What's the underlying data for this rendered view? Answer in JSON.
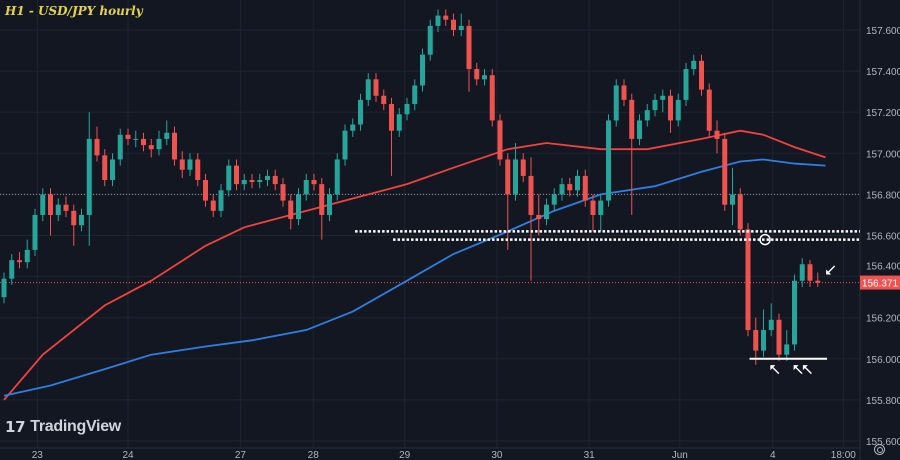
{
  "chart_data": {
    "type": "candlestick",
    "title": "H1 - USD/JPY hourly",
    "symbol": "USD/JPY",
    "timeframe": "hourly",
    "ylim": [
      155.566,
      157.746
    ],
    "xlim": [
      -0.5,
      110.5
    ],
    "grid": true,
    "y_ticks": [
      "157.600",
      "157.400",
      "157.200",
      "157.000",
      "156.800",
      "156.600",
      "156.400",
      "156.200",
      "156.000",
      "155.800",
      "155.600"
    ],
    "x_ticks": [
      {
        "label": "23",
        "index": 4.3
      },
      {
        "label": "24",
        "index": 16
      },
      {
        "label": "27",
        "index": 30.5
      },
      {
        "label": "28",
        "index": 39.9
      },
      {
        "label": "29",
        "index": 51.7
      },
      {
        "label": "30",
        "index": 63.6
      },
      {
        "label": "31",
        "index": 75.5
      },
      {
        "label": "Jun",
        "index": 87.2
      },
      {
        "label": "4",
        "index": 99.2
      },
      {
        "label": "18:00",
        "index": 108.3
      }
    ],
    "last_price": "156.371",
    "colors": {
      "up": "#26a69a",
      "down": "#ef5350",
      "ma_fast": "#f0423f",
      "ma_slow": "#2f7fe0",
      "background": "#131722",
      "grid": "#1f2431",
      "axis_text": "#b2b5be",
      "title": "#e3d44a",
      "annotation": "#ffffff"
    },
    "candles": [
      [
        156.3,
        156.42,
        156.27,
        156.39
      ],
      [
        156.39,
        156.51,
        156.36,
        156.48
      ],
      [
        156.48,
        156.52,
        156.44,
        156.47
      ],
      [
        156.47,
        156.58,
        156.44,
        156.53
      ],
      [
        156.53,
        156.73,
        156.5,
        156.7
      ],
      [
        156.7,
        156.83,
        156.67,
        156.8
      ],
      [
        156.8,
        156.83,
        156.6,
        156.7
      ],
      [
        156.7,
        156.78,
        156.67,
        156.75
      ],
      [
        156.75,
        156.79,
        156.69,
        156.72
      ],
      [
        156.72,
        156.75,
        156.55,
        156.65
      ],
      [
        156.65,
        156.73,
        156.62,
        156.7
      ],
      [
        156.7,
        157.2,
        156.55,
        157.07
      ],
      [
        157.07,
        157.13,
        156.96,
        156.99
      ],
      [
        156.99,
        157.02,
        156.84,
        156.87
      ],
      [
        156.87,
        157.0,
        156.84,
        156.97
      ],
      [
        156.97,
        157.12,
        156.94,
        157.09
      ],
      [
        157.09,
        157.12,
        157.04,
        157.07
      ],
      [
        157.07,
        157.11,
        157.03,
        157.07
      ],
      [
        157.07,
        157.1,
        157.01,
        157.04
      ],
      [
        157.04,
        157.07,
        156.98,
        157.02
      ],
      [
        157.02,
        157.11,
        156.99,
        157.07
      ],
      [
        157.07,
        157.16,
        157.04,
        157.1
      ],
      [
        157.1,
        157.13,
        156.94,
        156.97
      ],
      [
        156.97,
        157.01,
        156.88,
        156.92
      ],
      [
        156.92,
        157.0,
        156.89,
        156.97
      ],
      [
        156.97,
        157.0,
        156.84,
        156.87
      ],
      [
        156.87,
        156.9,
        156.74,
        156.77
      ],
      [
        156.77,
        156.8,
        156.69,
        156.72
      ],
      [
        156.72,
        156.85,
        156.69,
        156.82
      ],
      [
        156.82,
        156.97,
        156.79,
        156.94
      ],
      [
        156.94,
        156.97,
        156.82,
        156.85
      ],
      [
        156.85,
        156.9,
        156.82,
        156.87
      ],
      [
        156.87,
        156.9,
        156.83,
        156.86
      ],
      [
        156.86,
        156.9,
        156.83,
        156.87
      ],
      [
        156.87,
        156.92,
        156.84,
        156.89
      ],
      [
        156.89,
        156.92,
        156.82,
        156.85
      ],
      [
        156.85,
        156.88,
        156.74,
        156.77
      ],
      [
        156.77,
        156.8,
        156.63,
        156.68
      ],
      [
        156.68,
        156.83,
        156.65,
        156.8
      ],
      [
        156.8,
        156.9,
        156.77,
        156.87
      ],
      [
        156.87,
        156.9,
        156.82,
        156.85
      ],
      [
        156.85,
        156.88,
        156.58,
        156.7
      ],
      [
        156.7,
        156.83,
        156.67,
        156.8
      ],
      [
        156.8,
        157.0,
        156.77,
        156.97
      ],
      [
        156.97,
        157.14,
        156.94,
        157.11
      ],
      [
        157.11,
        157.17,
        157.08,
        157.14
      ],
      [
        157.14,
        157.29,
        157.11,
        157.26
      ],
      [
        157.26,
        157.39,
        157.23,
        157.36
      ],
      [
        157.36,
        157.39,
        157.25,
        157.28
      ],
      [
        157.28,
        157.31,
        157.21,
        157.24
      ],
      [
        157.24,
        157.27,
        156.89,
        157.11
      ],
      [
        157.11,
        157.22,
        157.08,
        157.19
      ],
      [
        157.19,
        157.27,
        157.16,
        157.24
      ],
      [
        157.24,
        157.36,
        157.21,
        157.33
      ],
      [
        157.33,
        157.51,
        157.3,
        157.48
      ],
      [
        157.48,
        157.65,
        157.45,
        157.62
      ],
      [
        157.62,
        157.7,
        157.59,
        157.67
      ],
      [
        157.67,
        157.7,
        157.62,
        157.65
      ],
      [
        157.65,
        157.68,
        157.57,
        157.6
      ],
      [
        157.6,
        157.68,
        157.57,
        157.62
      ],
      [
        157.62,
        157.65,
        157.3,
        157.41
      ],
      [
        157.41,
        157.44,
        157.33,
        157.36
      ],
      [
        157.36,
        157.41,
        157.33,
        157.38
      ],
      [
        157.38,
        157.41,
        157.13,
        157.16
      ],
      [
        157.16,
        157.19,
        156.94,
        156.97
      ],
      [
        156.97,
        157.0,
        156.53,
        156.8
      ],
      [
        156.8,
        157.05,
        156.77,
        156.97
      ],
      [
        156.97,
        157.0,
        156.86,
        156.89
      ],
      [
        156.89,
        156.98,
        156.38,
        156.7
      ],
      [
        156.7,
        156.8,
        156.6,
        156.68
      ],
      [
        156.68,
        156.78,
        156.65,
        156.75
      ],
      [
        156.75,
        156.83,
        156.72,
        156.8
      ],
      [
        156.8,
        156.88,
        156.77,
        156.85
      ],
      [
        156.85,
        156.88,
        156.79,
        156.82
      ],
      [
        156.82,
        156.92,
        156.79,
        156.89
      ],
      [
        156.89,
        156.92,
        156.74,
        156.77
      ],
      [
        156.77,
        156.8,
        156.62,
        156.7
      ],
      [
        156.7,
        156.8,
        156.62,
        156.77
      ],
      [
        156.77,
        157.19,
        156.74,
        157.16
      ],
      [
        157.16,
        157.36,
        157.13,
        157.33
      ],
      [
        157.33,
        157.36,
        157.23,
        157.26
      ],
      [
        157.26,
        157.29,
        156.7,
        157.07
      ],
      [
        157.07,
        157.19,
        157.04,
        157.16
      ],
      [
        157.16,
        157.24,
        157.13,
        157.21
      ],
      [
        157.21,
        157.29,
        157.18,
        157.26
      ],
      [
        157.26,
        157.31,
        157.2,
        157.28
      ],
      [
        157.28,
        157.31,
        157.1,
        157.16
      ],
      [
        157.16,
        157.29,
        157.13,
        157.26
      ],
      [
        157.26,
        157.44,
        157.23,
        157.41
      ],
      [
        157.41,
        157.48,
        157.38,
        157.45
      ],
      [
        157.45,
        157.48,
        157.28,
        157.31
      ],
      [
        157.31,
        157.34,
        157.08,
        157.11
      ],
      [
        157.11,
        157.16,
        157.0,
        157.07
      ],
      [
        157.07,
        157.1,
        156.72,
        156.75
      ],
      [
        156.75,
        156.93,
        156.65,
        156.8
      ],
      [
        156.8,
        156.83,
        156.6,
        156.63
      ],
      [
        156.63,
        156.66,
        156.11,
        156.14
      ],
      [
        156.14,
        156.2,
        155.97,
        156.04
      ],
      [
        156.04,
        156.24,
        156.01,
        156.14
      ],
      [
        156.14,
        156.27,
        156.11,
        156.19
      ],
      [
        156.19,
        156.22,
        155.99,
        156.02
      ],
      [
        156.02,
        156.14,
        155.99,
        156.07
      ],
      [
        156.07,
        156.41,
        156.04,
        156.38
      ],
      [
        156.38,
        156.49,
        156.35,
        156.46
      ],
      [
        156.46,
        156.48,
        156.35,
        156.38
      ],
      [
        156.38,
        156.42,
        156.35,
        156.37
      ]
    ],
    "moving_averages": [
      {
        "color": "#f0423f",
        "points": [
          [
            0,
            155.8
          ],
          [
            5,
            156.02
          ],
          [
            13,
            156.26
          ],
          [
            19,
            156.38
          ],
          [
            26,
            156.55
          ],
          [
            31,
            156.64
          ],
          [
            39,
            156.72
          ],
          [
            45,
            156.78
          ],
          [
            52,
            156.85
          ],
          [
            58,
            156.93
          ],
          [
            65,
            157.02
          ],
          [
            70,
            157.05
          ],
          [
            77,
            157.02
          ],
          [
            83,
            157.02
          ],
          [
            90,
            157.07
          ],
          [
            95,
            157.11
          ],
          [
            98,
            157.09
          ],
          [
            102,
            157.03
          ],
          [
            106,
            156.98
          ]
        ]
      },
      {
        "color": "#2f7fe0",
        "points": [
          [
            0,
            155.82
          ],
          [
            6,
            155.87
          ],
          [
            13,
            155.95
          ],
          [
            19,
            156.02
          ],
          [
            26,
            156.06
          ],
          [
            32,
            156.09
          ],
          [
            39,
            156.14
          ],
          [
            45,
            156.23
          ],
          [
            52,
            156.38
          ],
          [
            58,
            156.51
          ],
          [
            65,
            156.62
          ],
          [
            71,
            156.72
          ],
          [
            77,
            156.8
          ],
          [
            84,
            156.84
          ],
          [
            90,
            156.91
          ],
          [
            95,
            156.96
          ],
          [
            98,
            156.97
          ],
          [
            102,
            156.95
          ],
          [
            106,
            156.94
          ]
        ]
      }
    ],
    "annotations": {
      "resistance_levels": [
        {
          "price": 156.62,
          "from_index": 45.3
        },
        {
          "price": 156.58,
          "from_index": 50.2
        }
      ],
      "reference_level": 156.8,
      "support_line": {
        "price": 156.0,
        "from_index": 96.2,
        "to_index": 106.2
      },
      "circle": {
        "index": 98.2,
        "price": 156.58
      },
      "arrows": [
        {
          "index": 99.4,
          "price": 155.95,
          "direction": "up-left"
        },
        {
          "index": 102.4,
          "price": 155.95,
          "direction": "up-left"
        },
        {
          "index": 103.6,
          "price": 155.95,
          "direction": "up-left"
        },
        {
          "index": 106.6,
          "price": 156.43,
          "direction": "down-left"
        }
      ]
    }
  },
  "branding": {
    "logo_text": "TradingView"
  },
  "icons": {
    "settings": "gear-icon"
  }
}
